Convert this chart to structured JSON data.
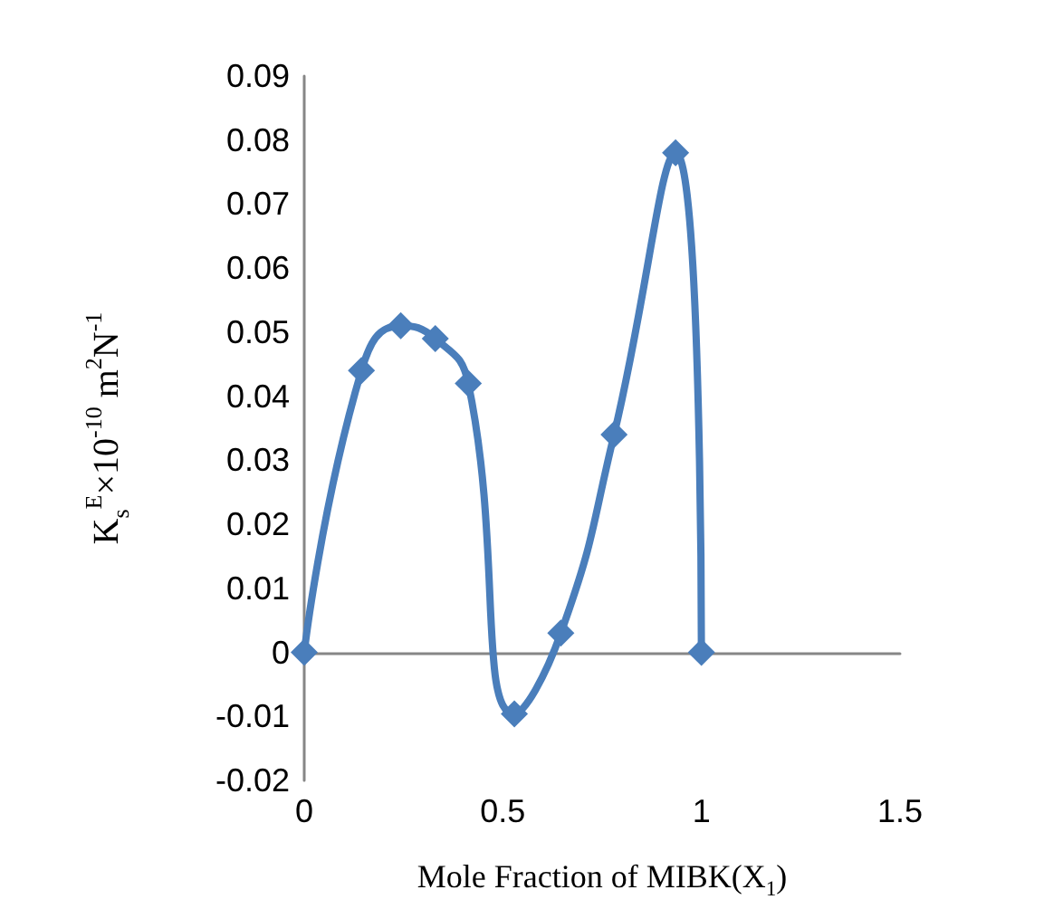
{
  "chart_data": {
    "type": "line",
    "xlabel": "Mole Fraction of MIBK(X$_{1}$)",
    "ylabel": "K$_{s}$$^{E}$×10$^{-10}$ m$^{2}$N$^{-1}$",
    "x": [
      0,
      0.144,
      0.243,
      0.33,
      0.413,
      0.529,
      0.646,
      0.78,
      0.935,
      1
    ],
    "series": [
      {
        "color": "#4a7ebb",
        "values": [
          0,
          0.044,
          0.051,
          0.049,
          0.042,
          -0.0096,
          0.003,
          0.034,
          0.078,
          0
        ]
      }
    ],
    "xlim": [
      0,
      1.5
    ],
    "xticks": [
      0,
      0.5,
      1,
      1.5
    ],
    "ylim": [
      -0.02,
      0.09
    ],
    "yticks": [
      -0.02,
      -0.01,
      0,
      0.01,
      0.02,
      0.03,
      0.04,
      0.05,
      0.06,
      0.07,
      0.08,
      0.09
    ],
    "marker": "diamond",
    "line_style": "solid"
  }
}
